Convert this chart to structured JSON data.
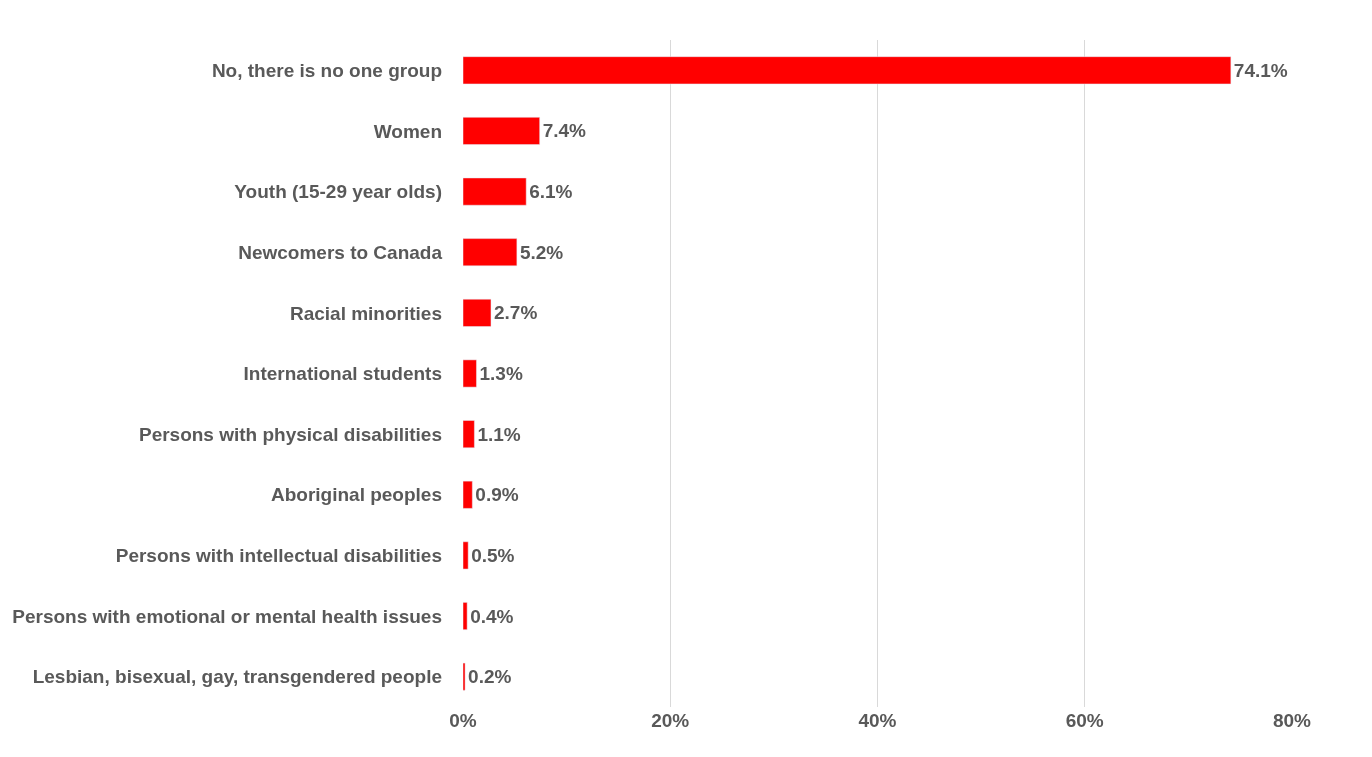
{
  "chart_data": {
    "type": "bar",
    "orientation": "horizontal",
    "categories": [
      "No, there is no one group",
      "Women",
      "Youth (15-29 year olds)",
      "Newcomers to Canada",
      "Racial minorities",
      "International students",
      "Persons with physical disabilities",
      "Aboriginal peoples",
      "Persons with intellectual disabilities",
      "Persons with emotional or mental health issues",
      "Lesbian, bisexual, gay, transgendered people"
    ],
    "values": [
      74.1,
      7.4,
      6.1,
      5.2,
      2.7,
      1.3,
      1.1,
      0.9,
      0.5,
      0.4,
      0.2
    ],
    "value_labels": [
      "74.1%",
      "7.4%",
      "6.1%",
      "5.2%",
      "2.7%",
      "1.3%",
      "1.1%",
      "0.9%",
      "0.5%",
      "0.4%",
      "0.2%"
    ],
    "color": "#ff0000",
    "xlim": [
      0,
      80
    ],
    "xticks": [
      {
        "value": 0,
        "label": "0%"
      },
      {
        "value": 20,
        "label": "20%"
      },
      {
        "value": 40,
        "label": "40%"
      },
      {
        "value": 60,
        "label": "60%"
      },
      {
        "value": 80,
        "label": "80%"
      }
    ],
    "grid": "x"
  }
}
